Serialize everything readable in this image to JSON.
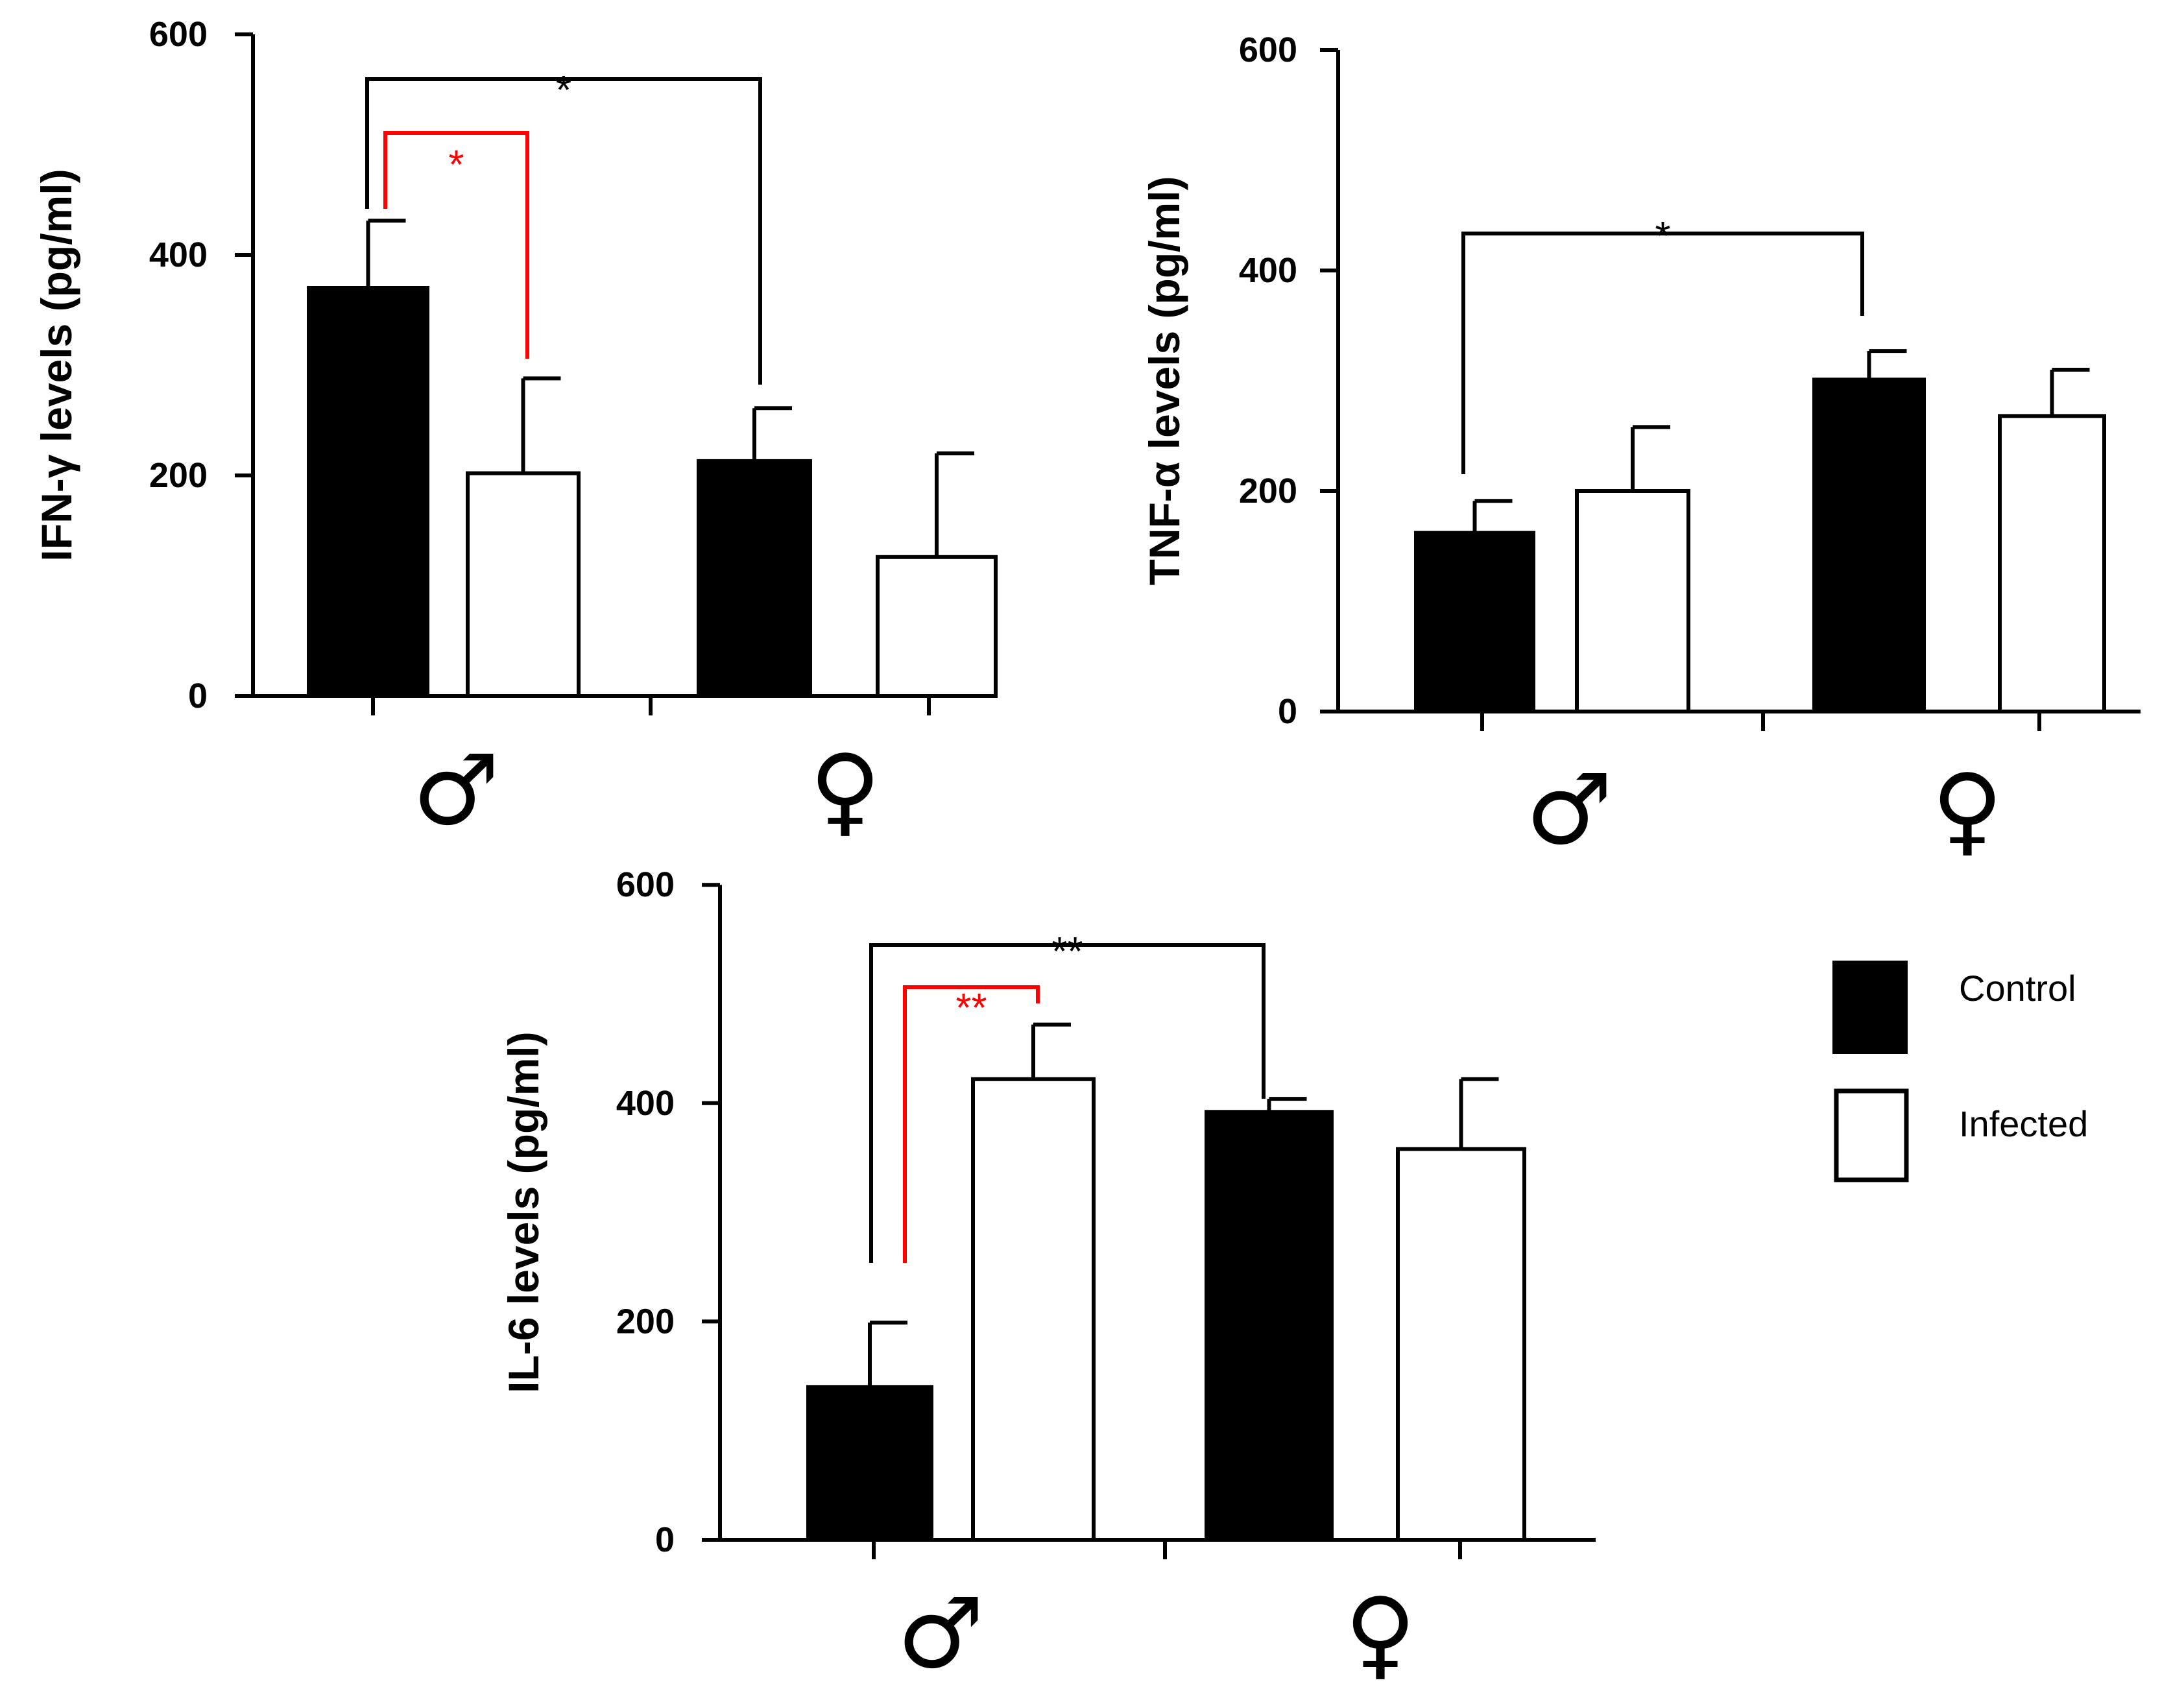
{
  "colors": {
    "control": "#000000",
    "infected": "#ffffff",
    "axis": "#000000",
    "sig_black": "#000000",
    "sig_red": "#ff0000"
  },
  "legend": {
    "control_label": "Control",
    "infected_label": "Infected"
  },
  "chart_data": [
    {
      "type": "bar",
      "ylabel": "IFN-γ  levels (pg/ml)",
      "ylim": [
        0,
        600
      ],
      "yticks": [
        0,
        200,
        400,
        600
      ],
      "categories": [
        "♂",
        "♀"
      ],
      "series": [
        {
          "name": "Control",
          "values": [
            370,
            213
          ],
          "errors": [
            61,
            48
          ]
        },
        {
          "name": "Infected",
          "values": [
            202,
            126
          ],
          "errors": [
            86,
            94
          ]
        }
      ],
      "significance": [
        {
          "label": "*",
          "color": "red",
          "from": "Control ♂",
          "to": "Infected ♂"
        },
        {
          "label": "*",
          "color": "black",
          "from": "Control ♂",
          "to": "Control ♀"
        }
      ]
    },
    {
      "type": "bar",
      "ylabel": "TNF-α  levels (pg/ml)",
      "ylim": [
        0,
        600
      ],
      "yticks": [
        0,
        200,
        400,
        600
      ],
      "categories": [
        "♂",
        "♀"
      ],
      "series": [
        {
          "name": "Control",
          "values": [
            162,
            301
          ],
          "errors": [
            29,
            26
          ]
        },
        {
          "name": "Infected",
          "values": [
            200,
            268
          ],
          "errors": [
            58,
            42
          ]
        }
      ],
      "significance": [
        {
          "label": "*",
          "color": "black",
          "from": "Control ♂",
          "to": "Control ♀"
        }
      ]
    },
    {
      "type": "bar",
      "ylabel": "IL-6  levels (pg/ml)",
      "ylim": [
        0,
        600
      ],
      "yticks": [
        0,
        200,
        400,
        600
      ],
      "categories": [
        "♂",
        "♀"
      ],
      "series": [
        {
          "name": "Control",
          "values": [
            140,
            392
          ],
          "errors": [
            59,
            12
          ]
        },
        {
          "name": "Infected",
          "values": [
            422,
            358
          ],
          "errors": [
            50,
            64
          ]
        }
      ],
      "significance": [
        {
          "label": "**",
          "color": "red",
          "from": "Control ♂",
          "to": "Infected ♂"
        },
        {
          "label": "**",
          "color": "black",
          "from": "Control ♂",
          "to": "Control ♀"
        }
      ]
    }
  ]
}
